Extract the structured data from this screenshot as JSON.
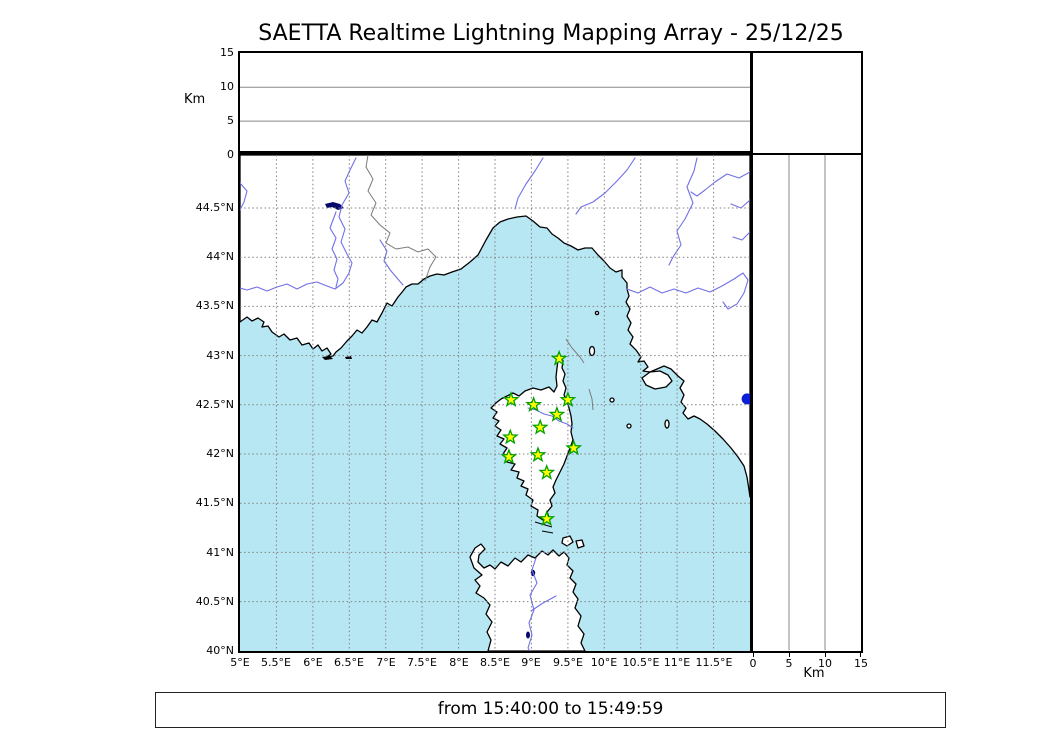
{
  "title": "SAETTA Realtime Lightning Mapping Array - 25/12/25",
  "time_range": {
    "text": "from 15:40:00 to 15:49:59"
  },
  "altitude_panel": {
    "axis_label": "Km",
    "ticks": [
      "15",
      "10",
      "5",
      "0"
    ],
    "range_km": [
      0,
      15
    ],
    "gridlines_km": [
      5,
      10
    ]
  },
  "right_altitude_panel": {
    "axis_label": "Km",
    "ticks": [
      "0",
      "5",
      "10",
      "15"
    ],
    "range_km": [
      0,
      15
    ],
    "gridlines_km": [
      5,
      10
    ]
  },
  "map": {
    "lat_ticks": [
      "44.5°N",
      "44°N",
      "43.5°N",
      "43°N",
      "42.5°N",
      "42°N",
      "41.5°N",
      "41°N",
      "40.5°N",
      "40°N"
    ],
    "lon_ticks": [
      "5°E",
      "5.5°E",
      "6°E",
      "6.5°E",
      "7°E",
      "7.5°E",
      "8°E",
      "8.5°E",
      "9°E",
      "9.5°E",
      "10°E",
      "10.5°E",
      "11°E",
      "11.5°E"
    ],
    "lon_range": [
      5,
      12
    ],
    "lat_range": [
      40,
      45.04
    ],
    "colors": {
      "sea": "#b8e7f4",
      "land": "#ffffff",
      "coast": "#000000",
      "river": "#7070e8",
      "admin_border": "#7a7a7a",
      "grid": "#808080",
      "station_fill": "#ffff00",
      "station_edge": "#00a000",
      "source_dot": "#0b1fd6"
    },
    "stations": [
      {
        "lon": 9.38,
        "lat": 42.97
      },
      {
        "lon": 8.72,
        "lat": 42.55
      },
      {
        "lon": 9.03,
        "lat": 42.5
      },
      {
        "lon": 9.5,
        "lat": 42.55
      },
      {
        "lon": 9.35,
        "lat": 42.4
      },
      {
        "lon": 9.12,
        "lat": 42.27
      },
      {
        "lon": 8.71,
        "lat": 42.17
      },
      {
        "lon": 9.58,
        "lat": 42.06
      },
      {
        "lon": 8.69,
        "lat": 41.97
      },
      {
        "lon": 9.09,
        "lat": 41.99
      },
      {
        "lon": 9.21,
        "lat": 41.81
      },
      {
        "lon": 9.21,
        "lat": 41.34
      }
    ],
    "sources": [
      {
        "lon": 11.96,
        "lat": 42.56
      }
    ]
  }
}
